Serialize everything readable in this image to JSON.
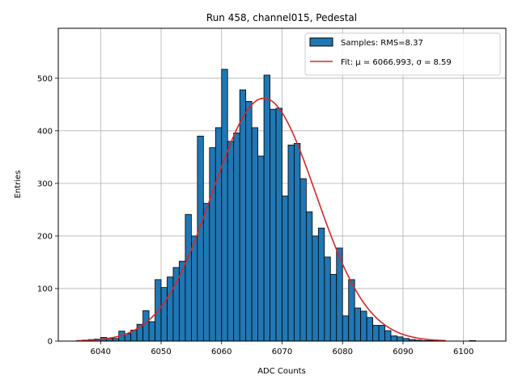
{
  "chart_data": {
    "type": "bar",
    "title": "Run 458, channel015, Pedestal",
    "xlabel": "ADC Counts",
    "ylabel": "Entries",
    "xlim": [
      6033,
      6107
    ],
    "ylim": [
      0,
      595
    ],
    "xticks": [
      6040,
      6050,
      6060,
      6070,
      6080,
      6090,
      6100
    ],
    "yticks": [
      0,
      100,
      200,
      300,
      400,
      500
    ],
    "grid": true,
    "legend_position": "top-right",
    "histogram": {
      "name": "Samples: RMS=8.37",
      "color": "#1f77b4",
      "edge_color": "#000000",
      "bin_start": 6036,
      "bin_width": 1,
      "counts": [
        1,
        2,
        3,
        4,
        7,
        5,
        5,
        19,
        14,
        21,
        32,
        58,
        37,
        117,
        102,
        122,
        140,
        152,
        241,
        200,
        390,
        262,
        368,
        406,
        517,
        380,
        396,
        478,
        456,
        406,
        352,
        506,
        441,
        443,
        276,
        373,
        376,
        309,
        246,
        200,
        215,
        160,
        127,
        177,
        48,
        117,
        63,
        57,
        45,
        30,
        30,
        20,
        10,
        8,
        5,
        3,
        2,
        1,
        1,
        1,
        1,
        0,
        0,
        0,
        0,
        1,
        0
      ]
    },
    "fit": {
      "name": "Fit: μ = 6066.993, σ = 8.59",
      "color": "#d62728",
      "mu": 6066.993,
      "sigma": 8.59,
      "amplitude": 462,
      "x_range": [
        6036,
        6097
      ]
    }
  }
}
